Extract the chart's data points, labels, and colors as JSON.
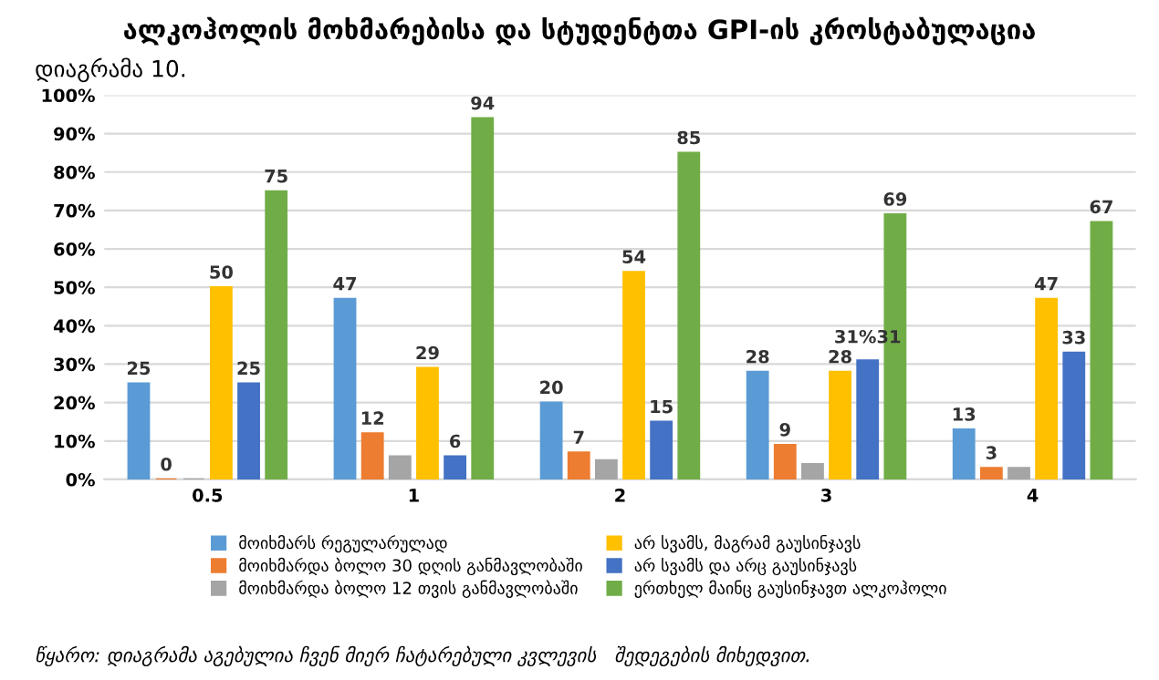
{
  "chart_data": {
    "type": "bar",
    "title": "ალკოჰოლის მოხმარებისა და სტუდენტთა GPI-ის კროსტაბულაცია",
    "subtitle": "დიაგრამა 10.",
    "categories": [
      "0.5",
      "1",
      "2",
      "3",
      "4"
    ],
    "series": [
      {
        "name": "მოიხმარს რეგულარულად",
        "color": "#5b9bd5",
        "values": [
          25,
          47,
          20,
          28,
          13
        ],
        "value_labels": [
          "25",
          "47",
          "20",
          "28",
          "13"
        ]
      },
      {
        "name": "მოიხმარდა ბოლო 30 დღის განმავლობაში",
        "color": "#ed7d31",
        "values": [
          0,
          12,
          7,
          9,
          3
        ],
        "value_labels": [
          "0",
          "12",
          "7",
          "9",
          "3"
        ]
      },
      {
        "name": "მოიხმარდა ბოლო 12 თვის განმავლობაში",
        "color": "#a5a5a5",
        "values": [
          0,
          6,
          5,
          4,
          3
        ]
      },
      {
        "name": "არ სვამს, მაგრამ გაუსინჯავს",
        "color": "#ffc000",
        "values": [
          50,
          29,
          54,
          28,
          47
        ],
        "value_labels": [
          "50",
          "29",
          "54",
          "28",
          "47"
        ]
      },
      {
        "name": "არ სვამს და არც გაუსინჯავს",
        "color": "#4472c4",
        "values": [
          25,
          6,
          15,
          31,
          33
        ],
        "value_labels": [
          "25",
          "6",
          "15",
          "31%31",
          "33"
        ]
      },
      {
        "name": "ერთხელ მაინც გაუსინჯავთ ალკოჰოლი",
        "color": "#70ad47",
        "values": [
          75,
          94,
          85,
          69,
          67
        ],
        "value_labels": [
          "75",
          "94",
          "85",
          "69",
          "67"
        ]
      }
    ],
    "ylim": [
      0,
      100
    ],
    "yticks": [
      {
        "value": 0,
        "label": "0%"
      },
      {
        "value": 10,
        "label": "10%"
      },
      {
        "value": 20,
        "label": "20%"
      },
      {
        "value": 30,
        "label": "30%"
      },
      {
        "value": 40,
        "label": "40%"
      },
      {
        "value": 50,
        "label": "50%"
      },
      {
        "value": 60,
        "label": "60%"
      },
      {
        "value": 70,
        "label": "70%"
      },
      {
        "value": 80,
        "label": "80%"
      },
      {
        "value": 90,
        "label": "90%"
      },
      {
        "value": 100,
        "label": "100%"
      }
    ],
    "grid": "y",
    "legend": "bottom",
    "annotations": [
      "წყარო: დიაგრამა აგებულია ჩვენ მიერ ჩატარებული კვლევის   შედეგების მიხედვით."
    ]
  }
}
